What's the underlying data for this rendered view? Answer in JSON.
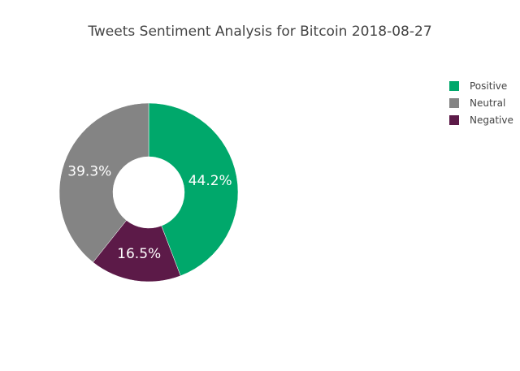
{
  "chart_data": {
    "type": "pie",
    "hole": true,
    "title": "Tweets Sentiment Analysis for Bitcoin 2018-08-27",
    "slices": [
      {
        "label": "Positive",
        "value": 44.2,
        "text": "44.2%",
        "color": "#00a86b"
      },
      {
        "label": "Neutral",
        "value": 39.3,
        "text": "39.3%",
        "color": "#848484"
      },
      {
        "label": "Negative",
        "value": 16.5,
        "text": "16.5%",
        "color": "#5c1a48"
      }
    ],
    "legend_order": [
      "Positive",
      "Neutral",
      "Negative"
    ],
    "legend_position": "top-right",
    "slice_order": [
      "Positive",
      "Negative",
      "Neutral"
    ],
    "direction": "clockwise",
    "start": "12 o'clock"
  }
}
